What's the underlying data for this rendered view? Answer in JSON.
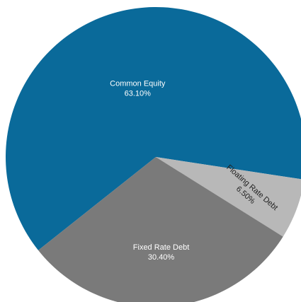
{
  "chart_data": {
    "type": "pie",
    "title": "",
    "slices": [
      {
        "label": "Common Equity",
        "percent_label": "63.10%",
        "value": 63.1,
        "color": "#0a6a9a"
      },
      {
        "label": "Floating Rate Debt",
        "percent_label": "6.50%",
        "value": 6.5,
        "color": "#b8b8b8"
      },
      {
        "label": "Fixed Rate Debt",
        "percent_label": "30.40%",
        "value": 30.4,
        "color": "#7a7a7a"
      }
    ],
    "legend": "none"
  }
}
